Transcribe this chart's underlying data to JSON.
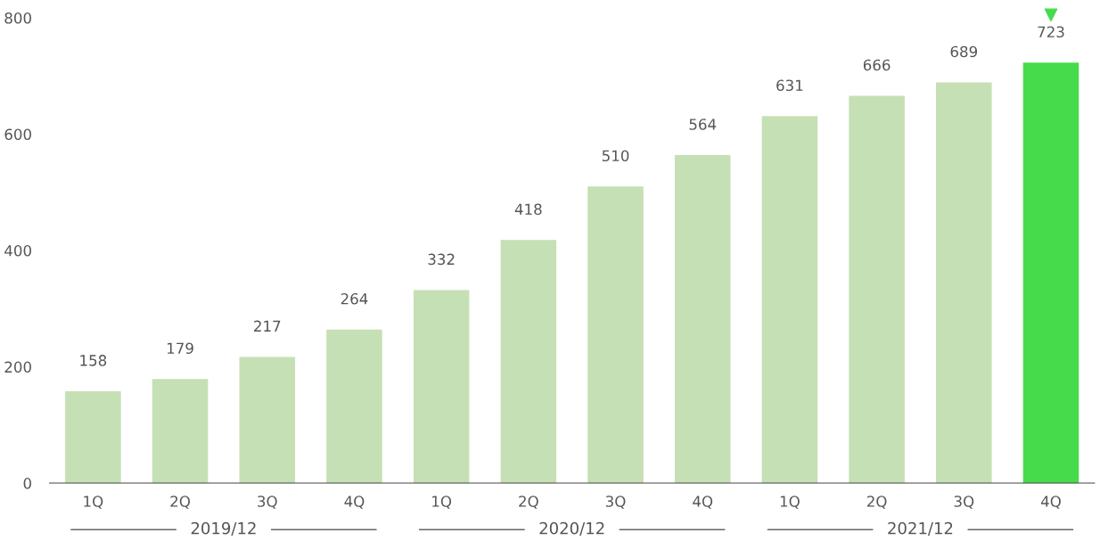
{
  "chart_data": {
    "type": "bar",
    "categories": [
      "1Q",
      "2Q",
      "3Q",
      "4Q",
      "1Q",
      "2Q",
      "3Q",
      "4Q",
      "1Q",
      "2Q",
      "3Q",
      "4Q"
    ],
    "values": [
      158,
      179,
      217,
      264,
      332,
      418,
      510,
      564,
      631,
      666,
      689,
      723
    ],
    "colors": [
      "#c5e0b4",
      "#c5e0b4",
      "#c5e0b4",
      "#c5e0b4",
      "#c5e0b4",
      "#c5e0b4",
      "#c5e0b4",
      "#c5e0b4",
      "#c5e0b4",
      "#c5e0b4",
      "#c5e0b4",
      "#46db4b"
    ],
    "ylim": [
      0,
      800
    ],
    "yticks": [
      0,
      200,
      400,
      600,
      800
    ],
    "data_labels": true,
    "grid": false,
    "annotations": [
      "2019/12",
      "2020/12",
      "2021/12"
    ]
  }
}
